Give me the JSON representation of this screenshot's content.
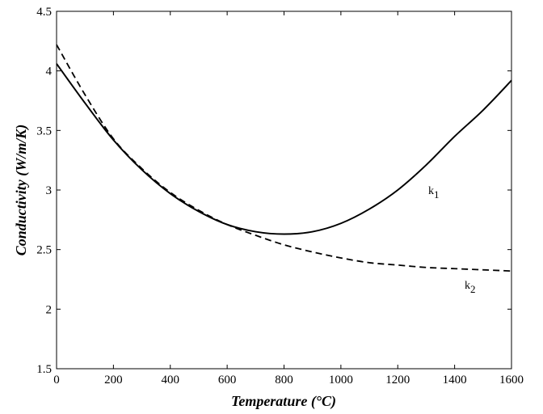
{
  "chart_data": {
    "type": "line",
    "title": "",
    "xlabel": "Temperature (°C)",
    "ylabel": "Conductivity (W/m/K)",
    "xlim": [
      0,
      1600
    ],
    "ylim": [
      1.5,
      4.5
    ],
    "x_ticks": [
      0,
      200,
      400,
      600,
      800,
      1000,
      1200,
      1400,
      1600
    ],
    "y_ticks": [
      1.5,
      2,
      2.5,
      3,
      3.5,
      4,
      4.5
    ],
    "y_tick_labels": [
      "1.5",
      "2",
      "2.5",
      "3",
      "3.5",
      "4",
      "4.5"
    ],
    "grid": false,
    "legend": "none",
    "series": [
      {
        "name": "k1",
        "label_main": "k",
        "label_sub": "1",
        "style": "solid",
        "color": "#000000",
        "x": [
          0,
          100,
          200,
          300,
          400,
          500,
          600,
          700,
          800,
          900,
          1000,
          1100,
          1200,
          1300,
          1400,
          1500,
          1600
        ],
        "y": [
          4.06,
          3.73,
          3.42,
          3.17,
          2.97,
          2.82,
          2.71,
          2.65,
          2.63,
          2.65,
          2.72,
          2.84,
          3.0,
          3.21,
          3.45,
          3.67,
          3.92
        ]
      },
      {
        "name": "k2",
        "label_main": "k",
        "label_sub": "2",
        "style": "dashed",
        "color": "#000000",
        "x": [
          0,
          100,
          200,
          300,
          400,
          500,
          600,
          700,
          800,
          900,
          1000,
          1100,
          1200,
          1300,
          1400,
          1500,
          1600
        ],
        "y": [
          4.22,
          3.8,
          3.43,
          3.18,
          2.98,
          2.83,
          2.71,
          2.62,
          2.54,
          2.48,
          2.43,
          2.39,
          2.37,
          2.35,
          2.34,
          2.33,
          2.32
        ]
      }
    ]
  }
}
